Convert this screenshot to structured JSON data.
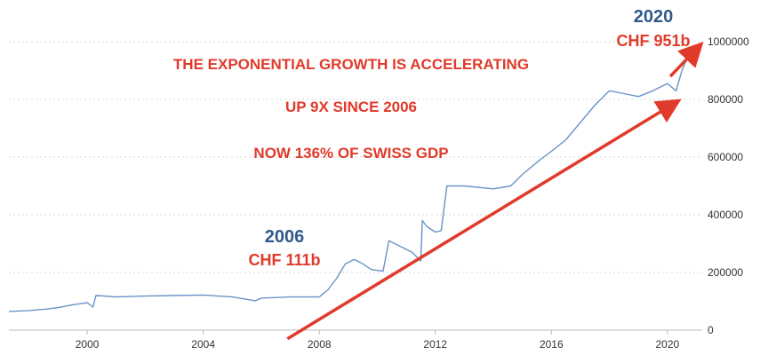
{
  "chart_data": {
    "type": "line",
    "title": "",
    "xlabel": "",
    "ylabel": "",
    "xlim": [
      1997.3,
      2021.2
    ],
    "ylim": [
      0,
      1000000
    ],
    "x_ticks": [
      2000,
      2004,
      2008,
      2012,
      2016,
      2020
    ],
    "y_ticks": [
      0,
      200000,
      400000,
      600000,
      800000,
      1000000
    ],
    "grid": "horizontal dotted",
    "line_color": "#6a93c6",
    "series": [
      {
        "name": "",
        "points": [
          [
            1997.3,
            65000
          ],
          [
            1998.0,
            68000
          ],
          [
            1998.5,
            72000
          ],
          [
            1999.0,
            78000
          ],
          [
            1999.5,
            88000
          ],
          [
            2000.0,
            95000
          ],
          [
            2000.2,
            80000
          ],
          [
            2000.3,
            120000
          ],
          [
            2000.6,
            118000
          ],
          [
            2001.0,
            115000
          ],
          [
            2002.0,
            118000
          ],
          [
            2003.0,
            120000
          ],
          [
            2004.0,
            122000
          ],
          [
            2005.0,
            115000
          ],
          [
            2005.8,
            102000
          ],
          [
            2006.0,
            111000
          ],
          [
            2007.0,
            115000
          ],
          [
            2008.0,
            115000
          ],
          [
            2008.3,
            140000
          ],
          [
            2008.6,
            180000
          ],
          [
            2008.9,
            230000
          ],
          [
            2009.2,
            245000
          ],
          [
            2009.5,
            230000
          ],
          [
            2009.8,
            210000
          ],
          [
            2010.2,
            205000
          ],
          [
            2010.4,
            310000
          ],
          [
            2010.8,
            290000
          ],
          [
            2011.2,
            270000
          ],
          [
            2011.5,
            240000
          ],
          [
            2011.55,
            380000
          ],
          [
            2011.7,
            360000
          ],
          [
            2012.0,
            340000
          ],
          [
            2012.2,
            345000
          ],
          [
            2012.4,
            500000
          ],
          [
            2013.0,
            500000
          ],
          [
            2014.0,
            490000
          ],
          [
            2014.6,
            500000
          ],
          [
            2015.0,
            540000
          ],
          [
            2015.6,
            590000
          ],
          [
            2016.0,
            620000
          ],
          [
            2016.5,
            660000
          ],
          [
            2017.0,
            720000
          ],
          [
            2017.5,
            780000
          ],
          [
            2018.0,
            830000
          ],
          [
            2018.5,
            820000
          ],
          [
            2019.0,
            810000
          ],
          [
            2019.5,
            830000
          ],
          [
            2020.0,
            855000
          ],
          [
            2020.3,
            830000
          ],
          [
            2020.5,
            900000
          ],
          [
            2020.7,
            950000
          ],
          [
            2020.9,
            951000
          ]
        ]
      }
    ],
    "trend_arrow": {
      "from": [
        2006.9,
        -30000
      ],
      "to": [
        2020.3,
        790000
      ]
    },
    "trend_arrow_2": {
      "from": [
        2020.1,
        880000
      ],
      "to": [
        2021.1,
        985000
      ]
    },
    "annotations": [
      {
        "text": "THE EXPONENTIAL GROWTH IS ACCELERATING",
        "color": "#e03a2a"
      },
      {
        "text": "UP 9X SINCE 2006",
        "color": "#e03a2a"
      },
      {
        "text": "NOW 136% OF SWISS  GDP",
        "color": "#e03a2a"
      },
      {
        "text": "2006",
        "color": "#2f5a8a"
      },
      {
        "text": "CHF 111b",
        "color": "#e03a2a"
      },
      {
        "text": "2020",
        "color": "#2f5a8a"
      },
      {
        "text": "CHF 951b",
        "color": "#e03a2a"
      }
    ]
  }
}
